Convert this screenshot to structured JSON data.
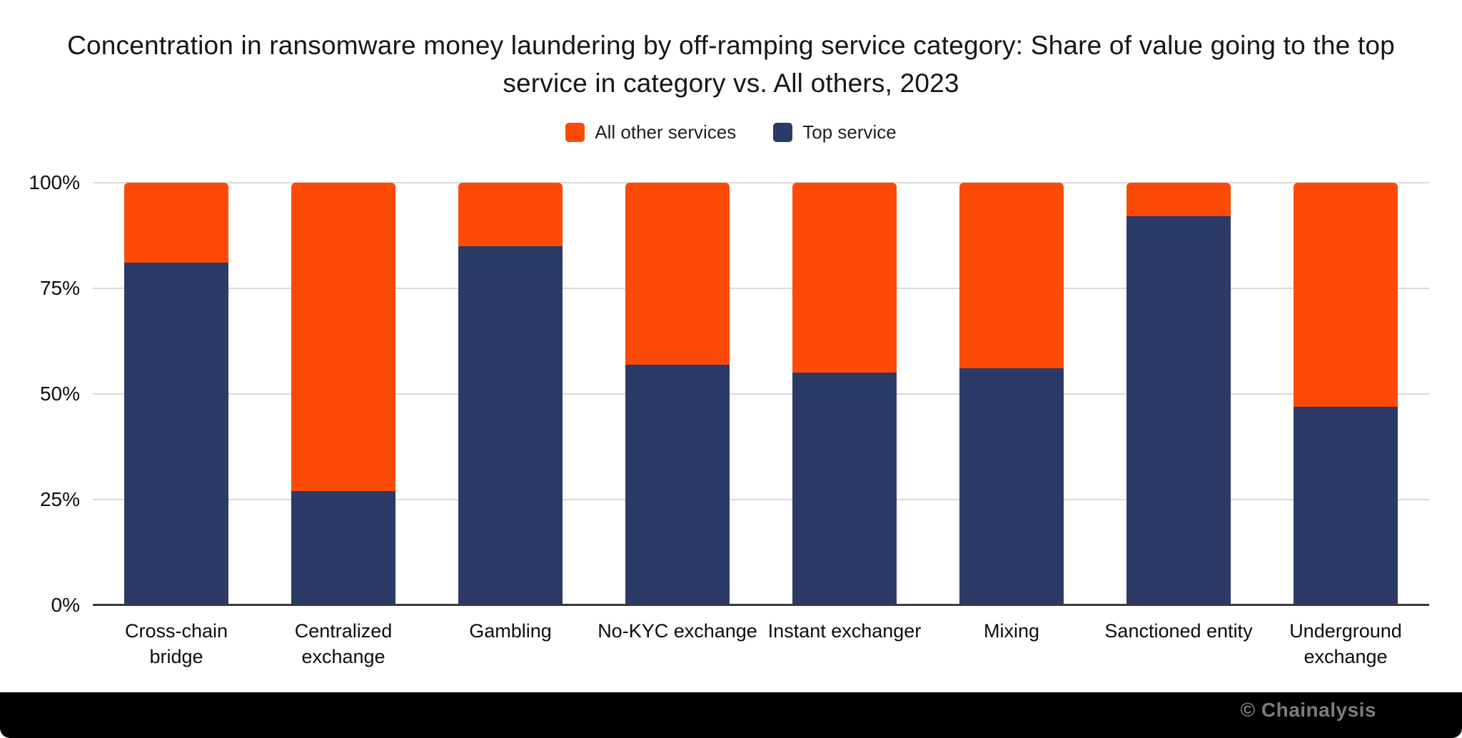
{
  "chart_data": {
    "type": "bar",
    "stacked": true,
    "title": "Concentration in ransomware money laundering by off-ramping service category: Share of value going to the top service in category vs. All others, 2023",
    "categories": [
      "Cross-chain bridge",
      "Centralized exchange",
      "Gambling",
      "No-KYC exchange",
      "Instant exchanger",
      "Mixing",
      "Sanctioned entity",
      "Underground exchange"
    ],
    "series": [
      {
        "name": "All other services",
        "color": "#FB4B06",
        "values": [
          19,
          73,
          15,
          43,
          45,
          44,
          8,
          53
        ]
      },
      {
        "name": "Top service",
        "color": "#2B3A67",
        "values": [
          81,
          27,
          85,
          57,
          55,
          56,
          92,
          47
        ]
      }
    ],
    "ylabel": "",
    "xlabel": "",
    "ylim": [
      0,
      100
    ],
    "yticks": [
      "0%",
      "25%",
      "50%",
      "75%",
      "100%"
    ],
    "grid": true,
    "legend_position": "top"
  },
  "footer": {
    "copyright": "© Chainalysis"
  }
}
